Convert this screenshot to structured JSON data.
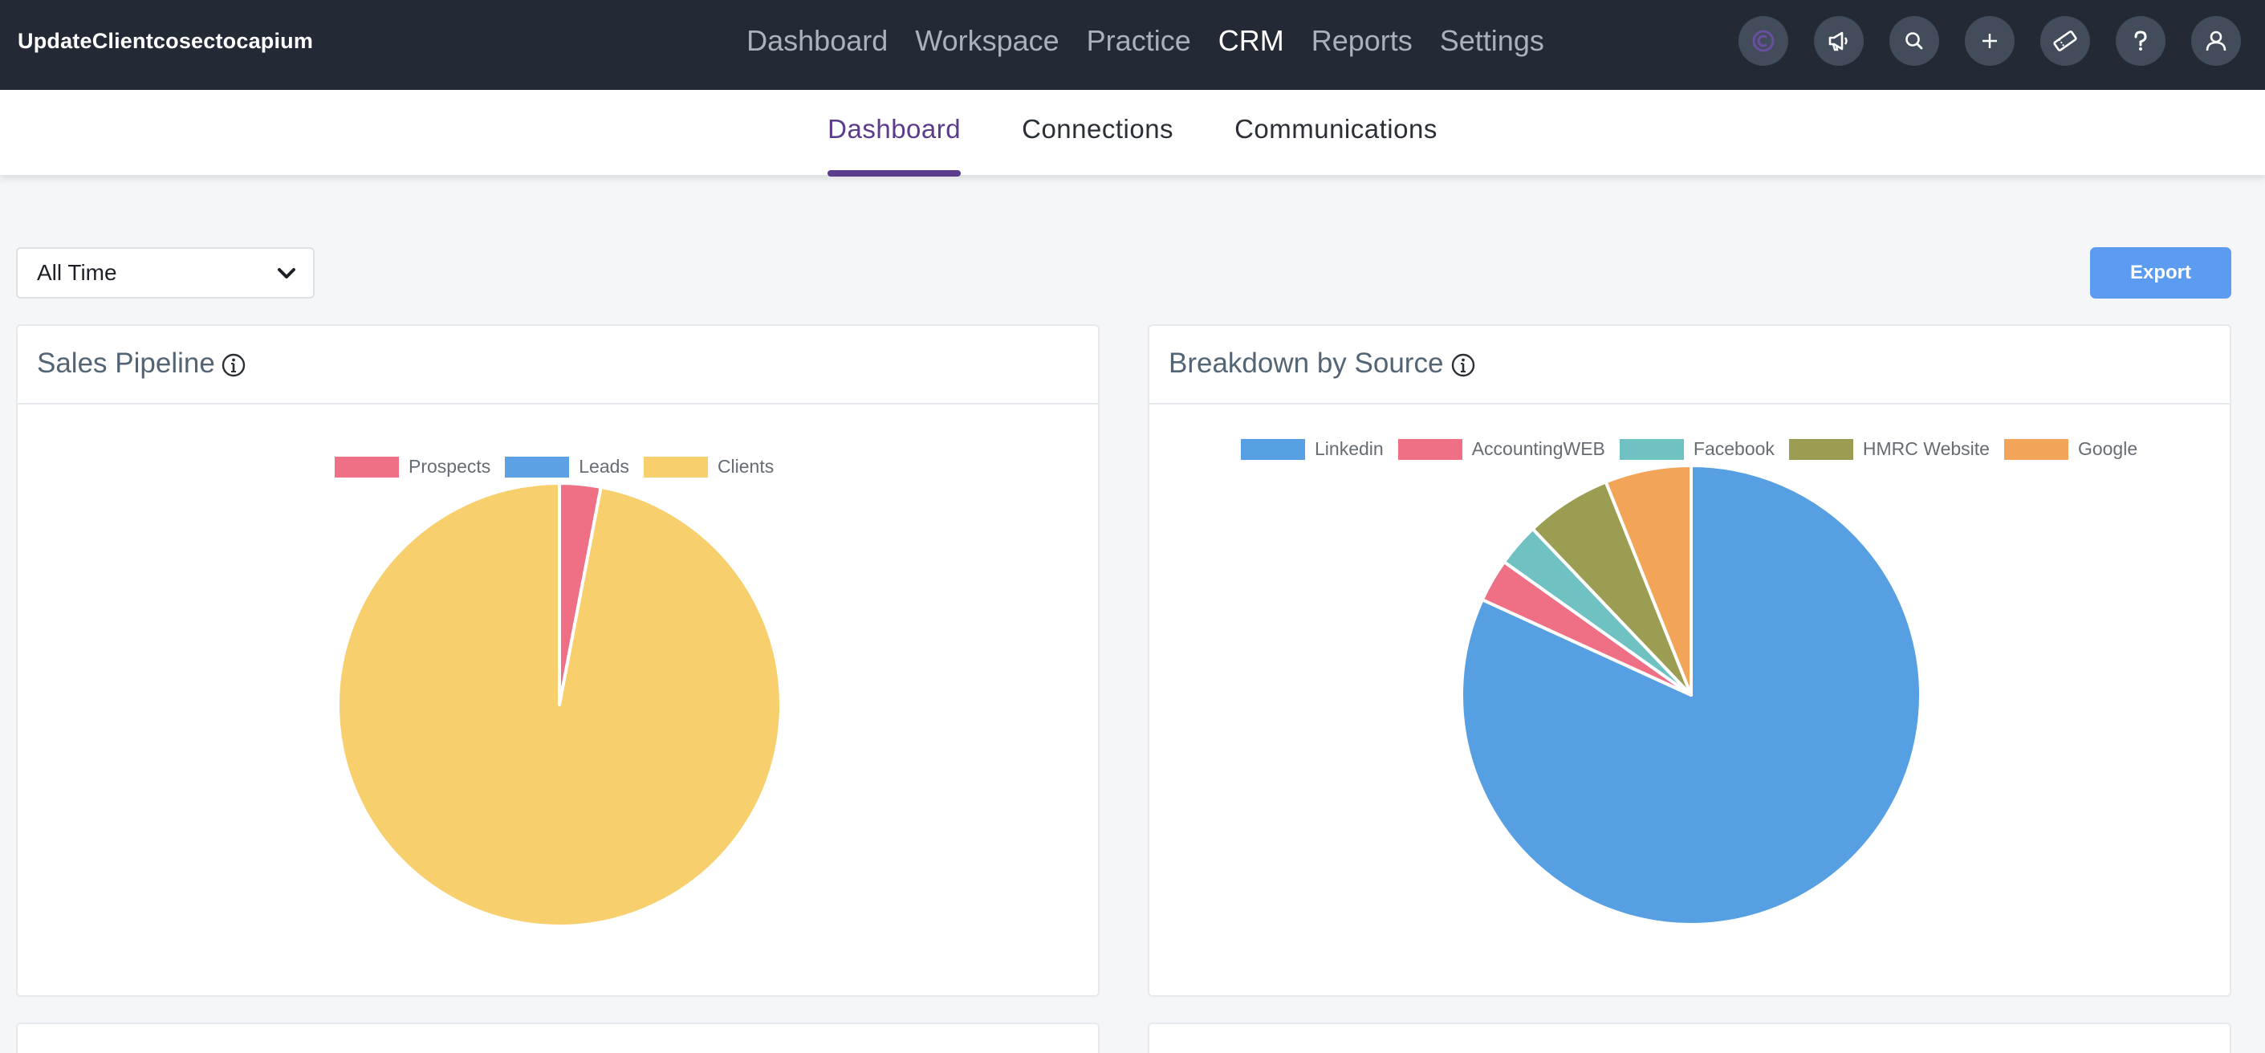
{
  "app": {
    "title": "UpdateClientcosectocapium"
  },
  "main_nav": [
    {
      "label": "Dashboard",
      "active": false
    },
    {
      "label": "Workspace",
      "active": false
    },
    {
      "label": "Practice",
      "active": false
    },
    {
      "label": "CRM",
      "active": true
    },
    {
      "label": "Reports",
      "active": false
    },
    {
      "label": "Settings",
      "active": false
    }
  ],
  "header_icons": [
    "capium-logo-icon",
    "megaphone-icon",
    "search-icon",
    "plus-icon",
    "ticket-icon",
    "help-icon",
    "user-icon"
  ],
  "sub_nav": [
    {
      "label": "Dashboard",
      "active": true
    },
    {
      "label": "Connections",
      "active": false
    },
    {
      "label": "Communications",
      "active": false
    }
  ],
  "filters": {
    "period": "All Time",
    "export_label": "Export"
  },
  "colors": {
    "accent": "#5b3b8c",
    "export": "#5b9cf0",
    "topbar": "#232a35"
  },
  "cards": {
    "sales_pipeline": {
      "title": "Sales Pipeline"
    },
    "breakdown_source": {
      "title": "Breakdown by Source"
    }
  },
  "chart_data": [
    {
      "type": "pie",
      "title": "Sales Pipeline",
      "legend_position": "top",
      "slices": [
        {
          "label": "Prospects",
          "value": 3,
          "color": "#ef6f85"
        },
        {
          "label": "Leads",
          "value": 0,
          "color": "#5ba1e3"
        },
        {
          "label": "Clients",
          "value": 97,
          "color": "#f7cf6c"
        }
      ]
    },
    {
      "type": "pie",
      "title": "Breakdown by Source",
      "legend_position": "top",
      "slices": [
        {
          "label": "Linkedin",
          "value": 81,
          "color": "#579fe3"
        },
        {
          "label": "AccountingWEB",
          "value": 3,
          "color": "#ef6f85"
        },
        {
          "label": "Facebook",
          "value": 3,
          "color": "#6fc2c1"
        },
        {
          "label": "HMRC Website",
          "value": 6,
          "color": "#9b9e52"
        },
        {
          "label": "Google",
          "value": 6,
          "color": "#f2a558"
        }
      ]
    }
  ]
}
